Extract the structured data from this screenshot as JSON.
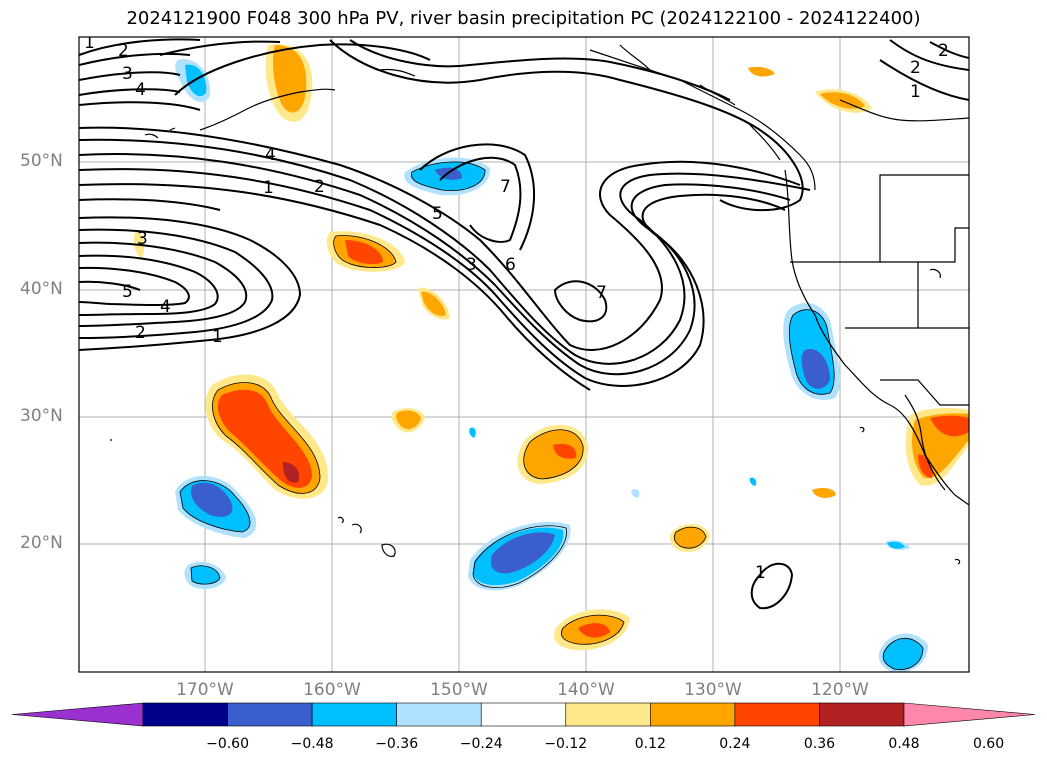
{
  "title": "2024121900 F048 300 hPa PV, river basin precipitation PC (2024122100 - 2024122400)",
  "lat_labels": [
    "50°N",
    "40°N",
    "30°N",
    "20°N"
  ],
  "lon_labels": [
    "170°W",
    "160°W",
    "150°W",
    "140°W",
    "130°W",
    "120°W"
  ],
  "colorbar": {
    "ticks": [
      "−0.60",
      "−0.48",
      "−0.36",
      "−0.24",
      "−0.12",
      "0.12",
      "0.24",
      "0.36",
      "0.48",
      "0.60"
    ],
    "colors": [
      "#9b30d0",
      "#00008b",
      "#3a5fcd",
      "#00bfff",
      "#b0e2ff",
      "#ffffff",
      "#ffe88a",
      "#ffa500",
      "#ff4500",
      "#b22222",
      "#ff88aa"
    ]
  },
  "contour_labels": [
    "1",
    "2",
    "3",
    "4",
    "4",
    "1",
    "2",
    "3",
    "5",
    "4",
    "2",
    "1",
    "5",
    "3",
    "6",
    "7",
    "7",
    "2",
    "1",
    "2",
    "1"
  ]
}
